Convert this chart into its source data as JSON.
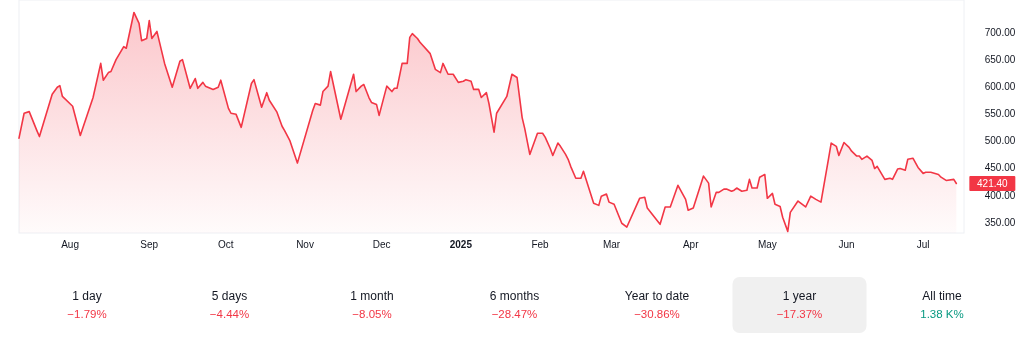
{
  "chart_data": {
    "type": "area",
    "x": [
      "2024-07-12",
      "2024-07-14",
      "2024-07-16",
      "2024-07-19",
      "2024-07-20",
      "2024-07-25",
      "2024-07-27",
      "2024-07-28",
      "2024-07-29",
      "2024-08-02",
      "2024-08-05",
      "2024-08-10",
      "2024-08-13",
      "2024-08-14",
      "2024-08-16",
      "2024-08-17",
      "2024-08-19",
      "2024-08-22",
      "2024-08-23",
      "2024-08-26",
      "2024-08-28",
      "2024-08-29",
      "2024-08-31",
      "2024-09-01",
      "2024-09-02",
      "2024-09-04",
      "2024-09-07",
      "2024-09-10",
      "2024-09-13",
      "2024-09-14",
      "2024-09-17",
      "2024-09-19",
      "2024-09-20",
      "2024-09-22",
      "2024-09-23",
      "2024-09-26",
      "2024-09-28",
      "2024-09-29",
      "2024-10-02",
      "2024-10-03",
      "2024-10-05",
      "2024-10-07",
      "2024-10-11",
      "2024-10-12",
      "2024-10-15",
      "2024-10-17",
      "2024-10-18",
      "2024-10-21",
      "2024-10-23",
      "2024-10-24",
      "2024-10-26",
      "2024-10-29",
      "2024-11-04",
      "2024-11-05",
      "2024-11-07",
      "2024-11-08",
      "2024-11-10",
      "2024-11-11",
      "2024-11-15",
      "2024-11-20",
      "2024-11-21",
      "2024-11-23",
      "2024-11-24",
      "2024-11-26",
      "2024-11-27",
      "2024-11-29",
      "2024-11-30",
      "2024-12-03",
      "2024-12-05",
      "2024-12-06",
      "2024-12-07",
      "2024-12-09",
      "2024-12-11",
      "2024-12-12",
      "2024-12-13",
      "2024-12-15",
      "2024-12-16",
      "2024-12-20",
      "2024-12-22",
      "2024-12-24",
      "2024-12-25",
      "2024-12-27",
      "2024-12-29",
      "2024-12-31",
      "2025-01-02",
      "2025-01-03",
      "2025-01-05",
      "2025-01-06",
      "2025-01-08",
      "2025-01-09",
      "2025-01-11",
      "2025-01-12",
      "2025-01-14",
      "2025-01-15",
      "2025-01-19",
      "2025-01-21",
      "2025-01-23",
      "2025-01-24",
      "2025-01-25",
      "2025-01-26",
      "2025-01-28",
      "2025-01-31",
      "2025-02-02",
      "2025-02-03",
      "2025-02-05",
      "2025-02-06",
      "2025-02-08",
      "2025-02-09",
      "2025-02-11",
      "2025-02-12",
      "2025-02-13",
      "2025-02-15",
      "2025-02-17",
      "2025-02-18",
      "2025-02-22",
      "2025-02-24",
      "2025-02-25",
      "2025-02-27",
      "2025-02-28",
      "2025-03-02",
      "2025-03-05",
      "2025-03-07",
      "2025-03-12",
      "2025-03-14",
      "2025-03-15",
      "2025-03-20",
      "2025-03-22",
      "2025-03-24",
      "2025-03-27",
      "2025-03-30",
      "2025-03-31",
      "2025-04-02",
      "2025-04-06",
      "2025-04-08",
      "2025-04-09",
      "2025-04-11",
      "2025-04-12",
      "2025-04-14",
      "2025-04-15",
      "2025-04-17",
      "2025-04-18",
      "2025-04-19",
      "2025-04-21",
      "2025-04-23",
      "2025-04-24",
      "2025-04-25",
      "2025-04-27",
      "2025-04-28",
      "2025-04-30",
      "2025-05-01",
      "2025-05-03",
      "2025-05-04",
      "2025-05-06",
      "2025-05-07",
      "2025-05-09",
      "2025-05-10",
      "2025-05-13",
      "2025-05-16",
      "2025-05-18",
      "2025-05-20",
      "2025-05-22",
      "2025-05-25",
      "2025-05-26",
      "2025-05-28",
      "2025-05-29",
      "2025-05-31",
      "2025-06-02",
      "2025-06-03",
      "2025-06-05",
      "2025-06-06",
      "2025-06-07",
      "2025-06-09",
      "2025-06-11",
      "2025-06-12",
      "2025-06-13",
      "2025-06-16",
      "2025-06-18",
      "2025-06-19",
      "2025-06-21",
      "2025-06-22",
      "2025-06-24",
      "2025-06-25",
      "2025-06-27",
      "2025-06-29",
      "2025-07-01",
      "2025-07-02",
      "2025-07-04",
      "2025-07-07",
      "2025-07-08",
      "2025-07-10",
      "2025-07-13",
      "2025-07-14"
    ],
    "series": [
      {
        "color": "#f23645",
        "values": [
          505,
          551,
          554,
          519,
          508,
          586,
          599,
          602,
          582,
          564,
          510,
          580,
          643,
          612,
          626,
          628,
          650,
          674,
          671,
          737,
          717,
          685,
          689,
          722,
          689,
          702,
          643,
          599,
          647,
          650,
          597,
          615,
          597,
          608,
          601,
          595,
          599,
          612,
          560,
          551,
          549,
          525,
          606,
          613,
          562,
          589,
          575,
          553,
          527,
          519,
          501,
          459,
          556,
          569,
          566,
          591,
          601,
          628,
          540,
          623,
          591,
          601,
          604,
          580,
          571,
          567,
          547,
          601,
          591,
          597,
          597,
          643,
          643,
          691,
          698,
          689,
          682,
          661,
          632,
          626,
          643,
          623,
          623,
          608,
          610,
          613,
          610,
          595,
          595,
          580,
          589,
          569,
          516,
          551,
          582,
          623,
          617,
          580,
          543,
          523,
          475,
          514,
          514,
          507,
          486,
          473,
          496,
          490,
          475,
          466,
          453,
          431,
          431,
          444,
          385,
          381,
          398,
          402,
          387,
          383,
          348,
          341,
          394,
          396,
          376,
          346,
          378,
          378,
          418,
          392,
          372,
          376,
          435,
          422,
          378,
          405,
          405,
          411,
          411,
          407,
          409,
          413,
          407,
          409,
          429,
          413,
          413,
          433,
          438,
          394,
          403,
          383,
          379,
          359,
          333,
          368,
          389,
          378,
          398,
          392,
          387,
          468,
          496,
          490,
          473,
          497,
          488,
          481,
          472,
          472,
          466,
          472,
          464,
          449,
          453,
          429,
          431,
          429,
          448,
          449,
          446,
          466,
          468,
          451,
          440,
          442,
          442,
          438,
          433,
          427,
          429,
          421.4
        ]
      }
    ],
    "xticks": [
      {
        "value": "2024-08-01",
        "label": "Aug"
      },
      {
        "value": "2024-09-01",
        "label": "Sep"
      },
      {
        "value": "2024-10-01",
        "label": "Oct"
      },
      {
        "value": "2024-11-01",
        "label": "Nov"
      },
      {
        "value": "2024-12-01",
        "label": "Dec"
      },
      {
        "value": "2025-01-01",
        "label": "2025"
      },
      {
        "value": "2025-02-01",
        "label": "Feb"
      },
      {
        "value": "2025-03-01",
        "label": "Mar"
      },
      {
        "value": "2025-04-01",
        "label": "Apr"
      },
      {
        "value": "2025-05-01",
        "label": "May"
      },
      {
        "value": "2025-06-01",
        "label": "Jun"
      },
      {
        "value": "2025-07-01",
        "label": "Jul"
      }
    ],
    "xlim": [
      "2024-07-12",
      "2025-07-17"
    ],
    "ylim": [
      330,
      760
    ],
    "yticks": [
      {
        "value": 350,
        "label": "350.00"
      },
      {
        "value": 400,
        "label": "400.00"
      },
      {
        "value": 450,
        "label": "450.00"
      },
      {
        "value": 500,
        "label": "500.00"
      },
      {
        "value": 550,
        "label": "550.00"
      },
      {
        "value": 600,
        "label": "600.00"
      },
      {
        "value": 650,
        "label": "650.00"
      },
      {
        "value": 700,
        "label": "700.00"
      }
    ],
    "grid": false,
    "annotations": [
      {
        "text": "421.40",
        "x": "2025-07-14",
        "y": 421.4
      },
      "1 day",
      "−1.79%",
      "5 days",
      "−4.44%",
      "1 month",
      "−8.05%",
      "6 months",
      "−28.47%",
      "Year to date",
      "−30.86%",
      "1 year",
      "−17.37%",
      "All time",
      "1.38 K%"
    ]
  }
}
